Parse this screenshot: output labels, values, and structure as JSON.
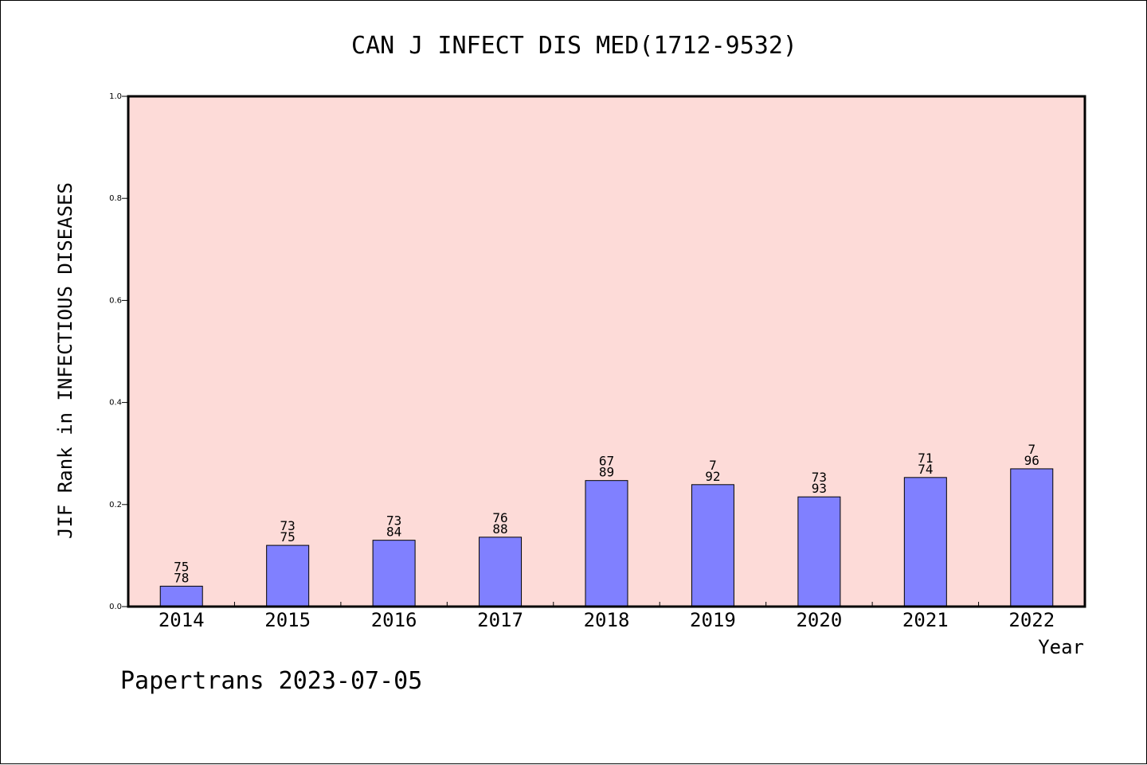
{
  "chart_data": {
    "type": "bar",
    "title": "CAN J INFECT DIS MED(1712-9532)",
    "xlabel": "Year",
    "ylabel": "JIF Rank in INFECTIOUS DISEASES",
    "ylim": [
      0,
      1.0
    ],
    "yticks": [
      "0.0",
      "0.2",
      "0.4",
      "0.6",
      "0.8",
      "1.0"
    ],
    "categories": [
      "2014",
      "2015",
      "2016",
      "2017",
      "2018",
      "2019",
      "2020",
      "2021",
      "2022"
    ],
    "values": [
      0.04,
      0.12,
      0.13,
      0.136,
      0.247,
      0.239,
      0.215,
      0.253,
      0.27
    ],
    "labels_top": [
      "75",
      "73",
      "73",
      "76",
      "67",
      "7",
      "73",
      "71",
      "7"
    ],
    "labels_bottom": [
      "78",
      "75",
      "84",
      "88",
      "89",
      "92",
      "93",
      "74",
      "96"
    ],
    "bar_color": "#8080ff",
    "plot_background": "#fddbd8",
    "grid": false,
    "legend": "none"
  },
  "footer": "Papertrans 2023-07-05"
}
